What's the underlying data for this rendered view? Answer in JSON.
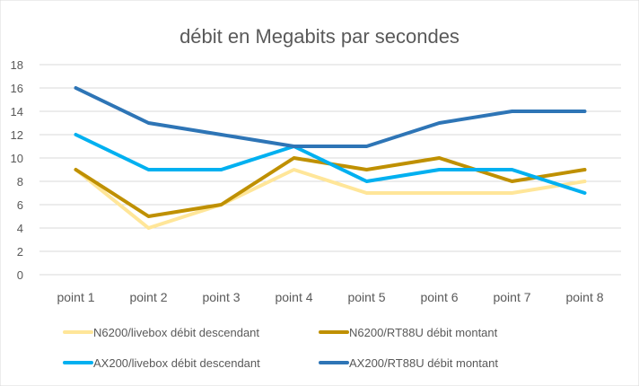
{
  "chart_data": {
    "type": "line",
    "title": "débit en Megabits par secondes",
    "xlabel": "",
    "ylabel": "",
    "categories": [
      "point 1",
      "point 2",
      "point 3",
      "point 4",
      "point 5",
      "point 6",
      "point 7",
      "point 8"
    ],
    "ylim": [
      0,
      18
    ],
    "yticks": [
      0,
      2,
      4,
      6,
      8,
      10,
      12,
      14,
      16,
      18
    ],
    "grid": true,
    "legend_position": "bottom",
    "series": [
      {
        "name": "N6200/livebox débit descendant",
        "color": "#ffe699",
        "values": [
          9,
          4,
          6,
          9,
          7,
          7,
          7,
          8
        ]
      },
      {
        "name": "N6200/RT88U débit montant",
        "color": "#bf9000",
        "values": [
          9,
          5,
          6,
          10,
          9,
          10,
          8,
          9
        ]
      },
      {
        "name": "AX200/livebox débit descendant",
        "color": "#00b0f0",
        "values": [
          12,
          9,
          9,
          11,
          8,
          9,
          9,
          7
        ]
      },
      {
        "name": "AX200/RT88U débit montant",
        "color": "#2e75b6",
        "values": [
          16,
          13,
          12,
          11,
          11,
          13,
          14,
          14
        ]
      }
    ]
  }
}
